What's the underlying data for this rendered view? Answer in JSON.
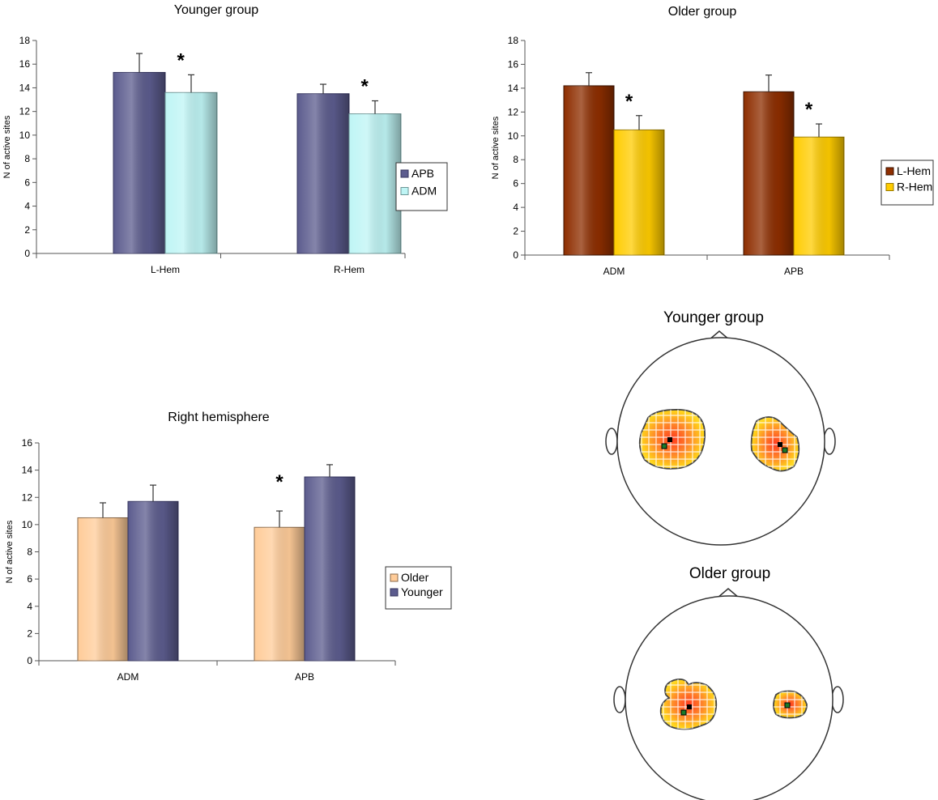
{
  "chart_data": [
    {
      "type": "bar",
      "title": "Younger group",
      "xlabel": "",
      "ylabel": "N of active sites",
      "ylim": [
        0,
        18
      ],
      "yticks": [
        0,
        2,
        4,
        6,
        8,
        10,
        12,
        14,
        16,
        18
      ],
      "categories": [
        "L-Hem",
        "R-Hem"
      ],
      "series": [
        {
          "name": "APB",
          "values": [
            15.3,
            13.5
          ],
          "errors": [
            1.6,
            0.8
          ],
          "color": "#5C5C8E",
          "edge": "#34345E"
        },
        {
          "name": "ADM",
          "values": [
            13.6,
            11.8
          ],
          "errors": [
            1.5,
            1.1
          ],
          "color": "#BFF5F5",
          "edge": "#6D9696"
        }
      ],
      "significance": [
        {
          "category": "L-Hem",
          "label": "*"
        },
        {
          "category": "R-Hem",
          "label": "*"
        }
      ]
    },
    {
      "type": "bar",
      "title": "Older group",
      "xlabel": "",
      "ylabel": "N of active sites",
      "ylim": [
        0,
        18
      ],
      "yticks": [
        0,
        2,
        4,
        6,
        8,
        10,
        12,
        14,
        16,
        18
      ],
      "categories": [
        "ADM",
        "APB"
      ],
      "series": [
        {
          "name": "L-Hem",
          "values": [
            14.2,
            13.7
          ],
          "errors": [
            1.1,
            1.4
          ],
          "color": "#8E2E00",
          "edge": "#3A1200"
        },
        {
          "name": "R-Hem",
          "values": [
            10.5,
            9.9
          ],
          "errors": [
            1.2,
            1.1
          ],
          "color": "#FFCC00",
          "edge": "#9A7A00"
        }
      ],
      "significance": [
        {
          "category": "ADM",
          "label": "*"
        },
        {
          "category": "APB",
          "label": "*"
        }
      ]
    },
    {
      "type": "bar",
      "title": "Right hemisphere",
      "xlabel": "",
      "ylabel": "N of active sites",
      "ylim": [
        0,
        16
      ],
      "yticks": [
        0,
        2,
        4,
        6,
        8,
        10,
        12,
        14,
        16
      ],
      "categories": [
        "ADM",
        "APB"
      ],
      "series": [
        {
          "name": "Older",
          "values": [
            10.5,
            9.8
          ],
          "errors": [
            1.1,
            1.2
          ],
          "color": "#FFCC99",
          "edge": "#8A6A4A"
        },
        {
          "name": "Younger",
          "values": [
            11.7,
            13.5
          ],
          "errors": [
            1.2,
            0.9
          ],
          "color": "#5C5C8E",
          "edge": "#34345E"
        }
      ],
      "significance": [
        {
          "category": "APB",
          "label": "*"
        }
      ]
    }
  ],
  "maps": {
    "younger_title": "Younger group",
    "older_title": "Older group"
  }
}
